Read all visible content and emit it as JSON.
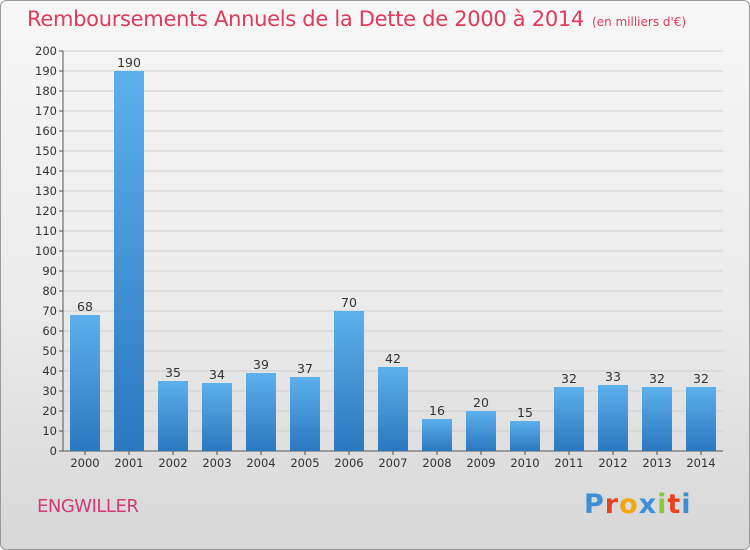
{
  "header": {
    "title": "Remboursements Annuels de la Dette de 2000 à 2014",
    "unit": "(en milliers d'€)"
  },
  "footer": {
    "commune": "ENGWILLER",
    "logo_text": "Proxiti"
  },
  "colors": {
    "title": "#e03a5c",
    "bar_top": "#5cb0ec",
    "bar_bottom": "#2a78bf"
  },
  "chart_data": {
    "type": "bar",
    "title": "Remboursements Annuels de la Dette de 2000 à 2014",
    "ylabel": "en milliers d'€",
    "xlabel": "",
    "categories": [
      "2000",
      "2001",
      "2002",
      "2003",
      "2004",
      "2005",
      "2006",
      "2007",
      "2008",
      "2009",
      "2010",
      "2011",
      "2012",
      "2013",
      "2014"
    ],
    "values": [
      68,
      190,
      35,
      34,
      39,
      37,
      70,
      42,
      16,
      20,
      15,
      32,
      33,
      32,
      32
    ],
    "ylim": [
      0,
      200
    ],
    "yticks": [
      0,
      10,
      20,
      30,
      40,
      50,
      60,
      70,
      80,
      90,
      100,
      110,
      120,
      130,
      140,
      150,
      160,
      170,
      180,
      190,
      200
    ],
    "grid": true
  }
}
